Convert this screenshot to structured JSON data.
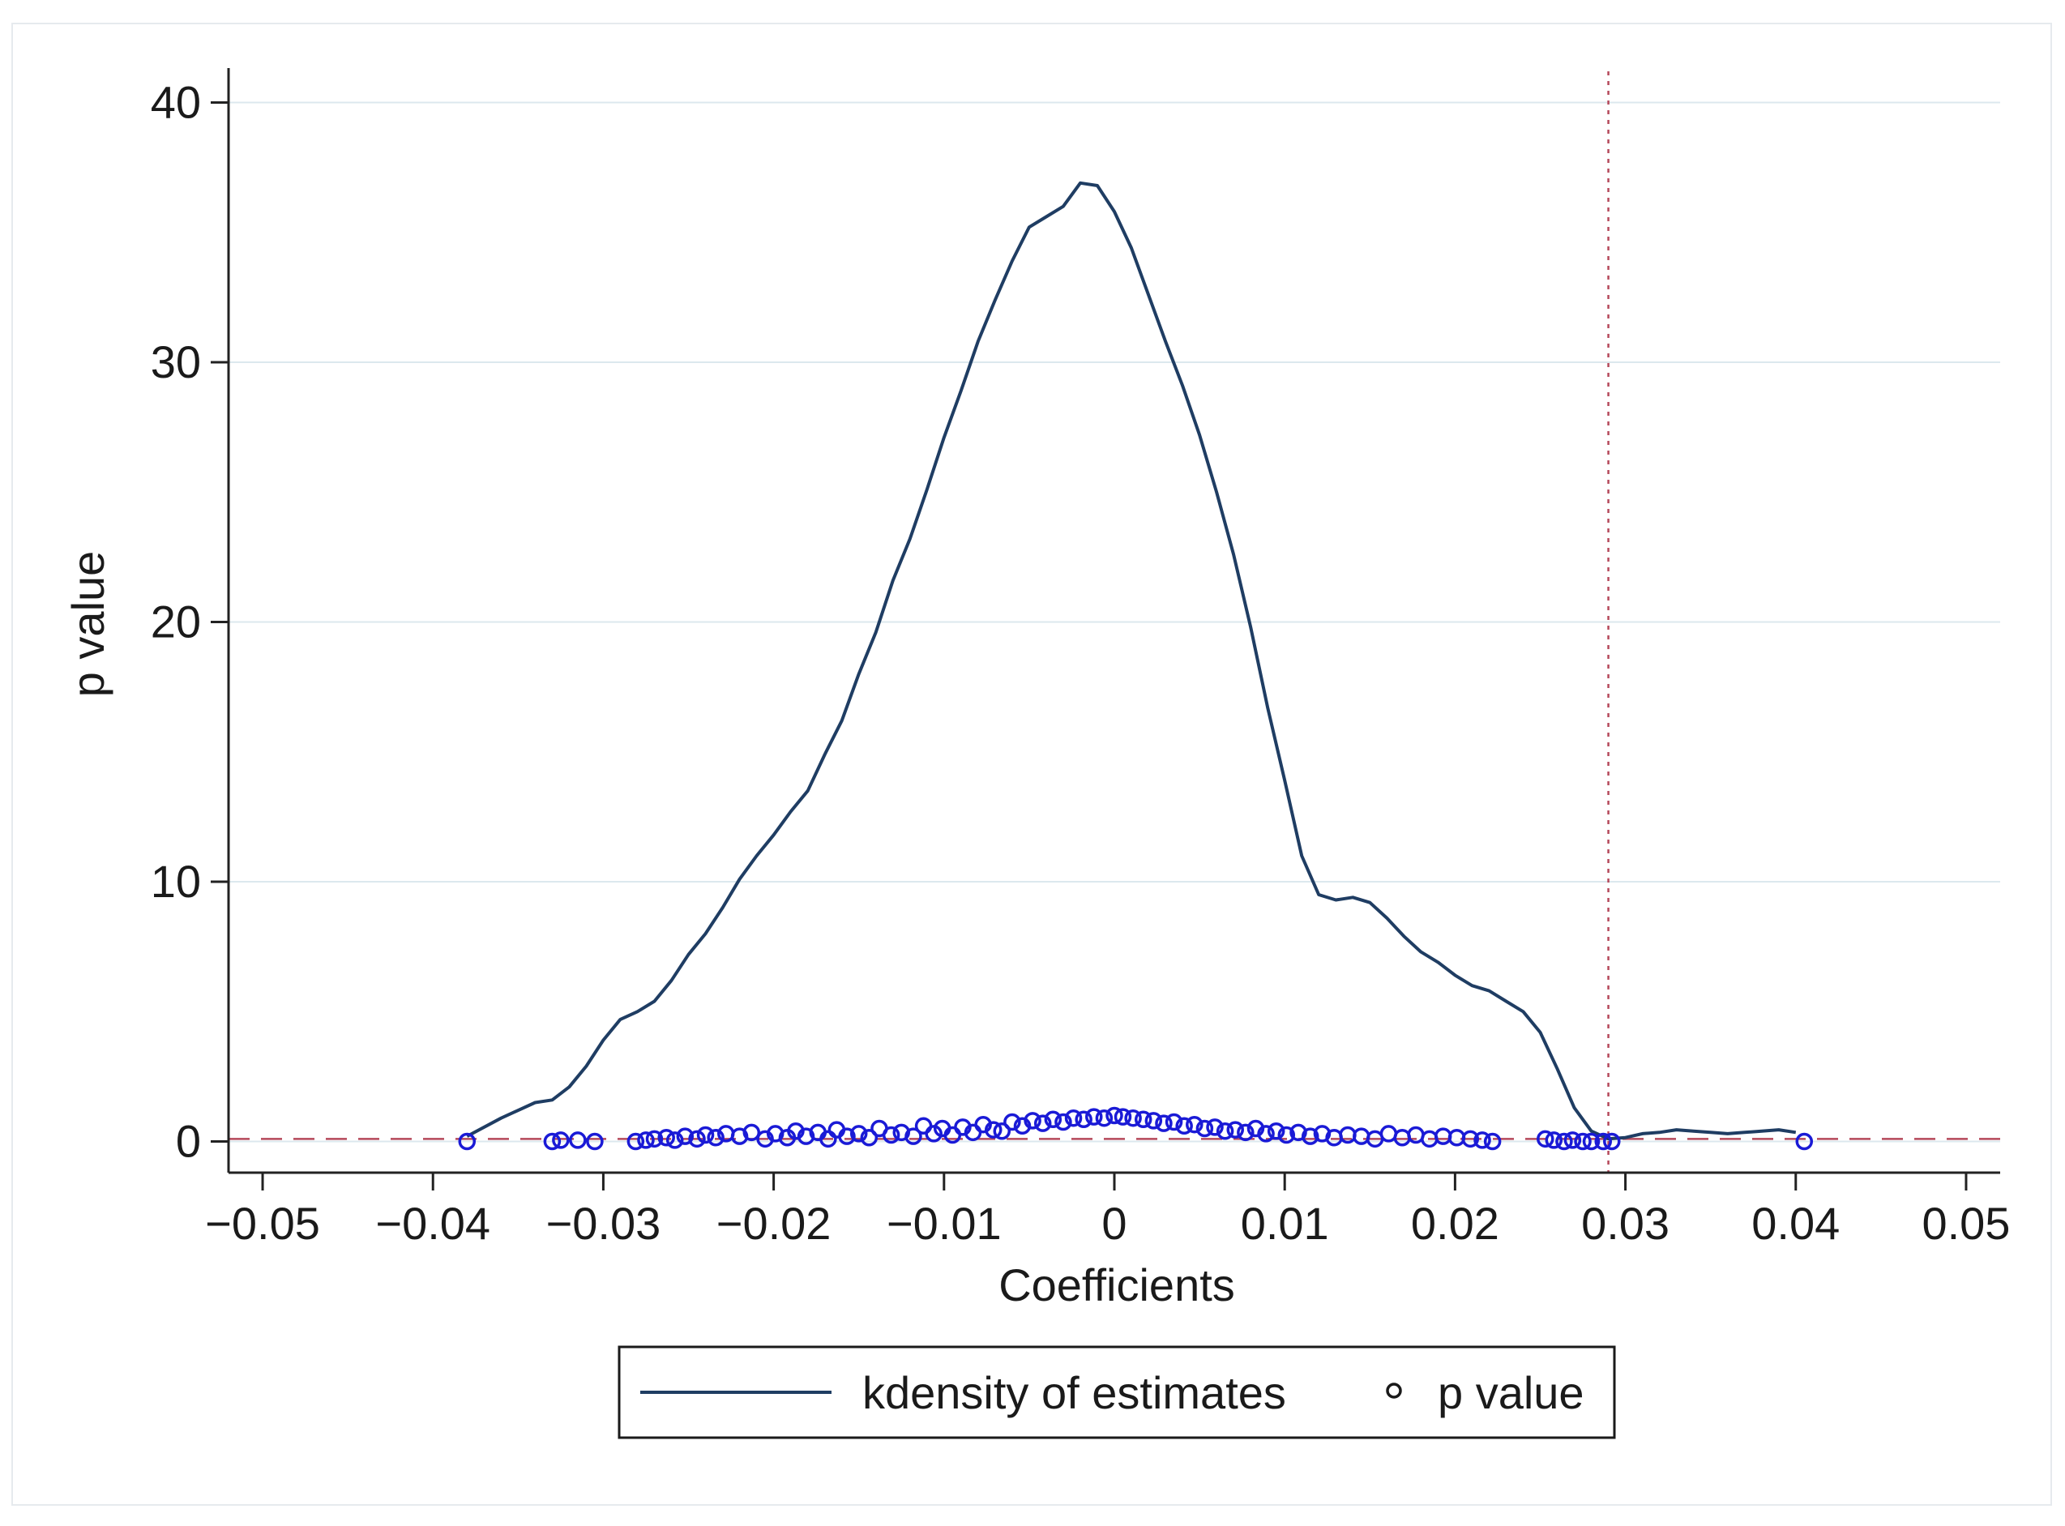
{
  "chart_data": {
    "type": "line",
    "title": "",
    "xlabel": "Coefficients",
    "ylabel": "p value",
    "xlim": [
      -0.052,
      0.052
    ],
    "ylim": [
      -1.2,
      41.2
    ],
    "x_ticks": [
      -0.05,
      -0.04,
      -0.03,
      -0.02,
      -0.01,
      0,
      0.01,
      0.02,
      0.03,
      0.04,
      0.05
    ],
    "x_tick_labels": [
      "−0.05",
      "−0.04",
      "−0.03",
      "−0.02",
      "−0.01",
      "0",
      "0.01",
      "0.02",
      "0.03",
      "0.04",
      "0.05"
    ],
    "y_ticks": [
      0,
      10,
      20,
      30,
      40
    ],
    "y_tick_labels": [
      "0",
      "10",
      "20",
      "30",
      "40"
    ],
    "grid": true,
    "colors": {
      "density": "#1f3d63",
      "points": "#1a1ad6",
      "ref_line": "#b5485a",
      "grid": "#dce8ee",
      "axis": "#222222"
    },
    "reference_lines": [
      {
        "orientation": "horizontal",
        "value": 0.1,
        "style": "dashed"
      },
      {
        "orientation": "vertical",
        "value": 0.029,
        "style": "dotted"
      }
    ],
    "legend": {
      "placement": "bottom-center",
      "entries": [
        {
          "label": "kdensity of estimates",
          "marker": "line"
        },
        {
          "label": "p value",
          "marker": "hollow-circle"
        }
      ]
    },
    "series": [
      {
        "name": "kdensity of estimates",
        "type": "line",
        "x": [
          -0.038,
          -0.036,
          -0.034,
          -0.033,
          -0.032,
          -0.031,
          -0.03,
          -0.029,
          -0.028,
          -0.027,
          -0.026,
          -0.025,
          -0.024,
          -0.023,
          -0.022,
          -0.021,
          -0.02,
          -0.019,
          -0.018,
          -0.017,
          -0.016,
          -0.015,
          -0.014,
          -0.013,
          -0.012,
          -0.011,
          -0.01,
          -0.009,
          -0.008,
          -0.007,
          -0.006,
          -0.005,
          -0.004,
          -0.003,
          -0.002,
          -0.001,
          0,
          0.001,
          0.002,
          0.003,
          0.004,
          0.005,
          0.006,
          0.007,
          0.008,
          0.009,
          0.01,
          0.011,
          0.012,
          0.013,
          0.014,
          0.015,
          0.016,
          0.017,
          0.018,
          0.019,
          0.02,
          0.021,
          0.022,
          0.023,
          0.024,
          0.025,
          0.026,
          0.027,
          0.028,
          0.029,
          0.03,
          0.031,
          0.032,
          0.033,
          0.034,
          0.035,
          0.036,
          0.037,
          0.038,
          0.039,
          0.04
        ],
        "y": [
          0.2,
          0.9,
          1.5,
          1.6,
          2.1,
          2.9,
          3.9,
          4.7,
          5.0,
          5.4,
          6.2,
          7.2,
          8.0,
          9.0,
          10.1,
          11.0,
          11.8,
          12.7,
          13.5,
          14.9,
          16.2,
          18.0,
          19.6,
          21.6,
          23.2,
          25.1,
          27.1,
          28.9,
          30.8,
          32.4,
          33.9,
          35.2,
          35.6,
          36.0,
          36.9,
          36.8,
          35.8,
          34.4,
          32.6,
          30.8,
          29.1,
          27.2,
          25.0,
          22.6,
          19.8,
          16.7,
          13.9,
          11.0,
          9.5,
          9.3,
          9.4,
          9.2,
          8.6,
          7.9,
          7.3,
          6.9,
          6.4,
          6.0,
          5.8,
          5.4,
          5.0,
          4.2,
          2.8,
          1.3,
          0.4,
          0.1,
          0.15,
          0.3,
          0.35,
          0.45,
          0.4,
          0.35,
          0.3,
          0.35,
          0.4,
          0.45,
          0.35
        ]
      },
      {
        "name": "p value",
        "type": "scatter",
        "marker": "hollow-circle",
        "x": [
          -0.038,
          -0.033,
          -0.0325,
          -0.0315,
          -0.0305,
          -0.0281,
          -0.0275,
          -0.027,
          -0.0263,
          -0.0258,
          -0.0252,
          -0.0245,
          -0.024,
          -0.0234,
          -0.0228,
          -0.022,
          -0.0213,
          -0.0205,
          -0.0199,
          -0.0192,
          -0.0187,
          -0.0181,
          -0.0174,
          -0.0168,
          -0.0163,
          -0.0157,
          -0.015,
          -0.0144,
          -0.0138,
          -0.0131,
          -0.0125,
          -0.0118,
          -0.0112,
          -0.0106,
          -0.0101,
          -0.0095,
          -0.0089,
          -0.0083,
          -0.0077,
          -0.0071,
          -0.0066,
          -0.006,
          -0.0054,
          -0.0048,
          -0.0042,
          -0.0036,
          -0.003,
          -0.0024,
          -0.0018,
          -0.0012,
          -0.0006,
          0.0,
          0.0005,
          0.0011,
          0.0017,
          0.0023,
          0.0029,
          0.0035,
          0.0041,
          0.0047,
          0.0053,
          0.0059,
          0.0065,
          0.0071,
          0.0077,
          0.0083,
          0.0089,
          0.0095,
          0.0101,
          0.0108,
          0.0115,
          0.0122,
          0.0129,
          0.0137,
          0.0145,
          0.0153,
          0.0161,
          0.0169,
          0.0177,
          0.0185,
          0.0193,
          0.0201,
          0.0209,
          0.0216,
          0.0222,
          0.0253,
          0.0258,
          0.0264,
          0.0269,
          0.0275,
          0.028,
          0.0287,
          0.0292,
          0.0405
        ],
        "y": [
          0.0,
          0.0,
          0.05,
          0.05,
          0.0,
          0.0,
          0.05,
          0.1,
          0.15,
          0.05,
          0.2,
          0.1,
          0.25,
          0.15,
          0.3,
          0.2,
          0.35,
          0.1,
          0.3,
          0.15,
          0.4,
          0.2,
          0.35,
          0.1,
          0.45,
          0.2,
          0.3,
          0.15,
          0.5,
          0.25,
          0.35,
          0.2,
          0.6,
          0.3,
          0.5,
          0.25,
          0.55,
          0.35,
          0.65,
          0.45,
          0.4,
          0.75,
          0.6,
          0.8,
          0.7,
          0.85,
          0.75,
          0.9,
          0.85,
          0.95,
          0.9,
          1.0,
          0.95,
          0.9,
          0.85,
          0.8,
          0.7,
          0.75,
          0.6,
          0.65,
          0.5,
          0.55,
          0.4,
          0.45,
          0.35,
          0.5,
          0.3,
          0.4,
          0.25,
          0.35,
          0.2,
          0.3,
          0.15,
          0.25,
          0.2,
          0.1,
          0.3,
          0.15,
          0.25,
          0.1,
          0.2,
          0.15,
          0.1,
          0.05,
          0.0,
          0.1,
          0.05,
          0.0,
          0.05,
          0.0,
          0.0,
          0.0,
          0.0,
          0.0
        ]
      }
    ]
  }
}
